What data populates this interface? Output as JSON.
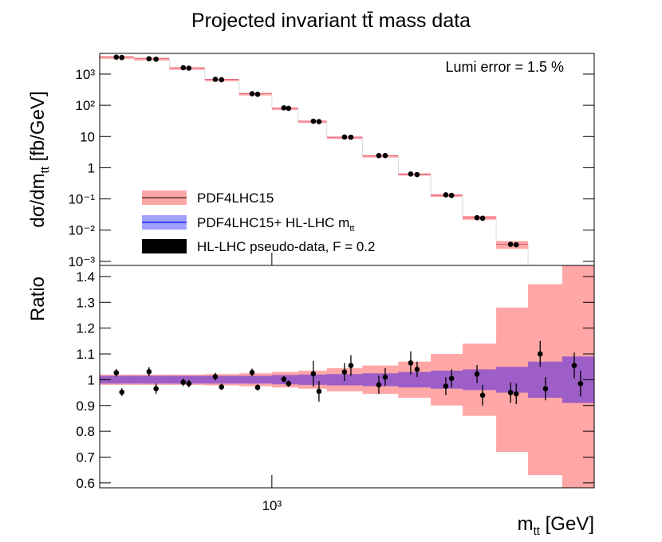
{
  "chart_data": [
    {
      "type": "histogram",
      "title": "Projected invariant tt̄ mass data",
      "ylabel": "dσ/dm",
      "ylabel_sub": "tt",
      "ylabel_unit": " [fb/GeV]",
      "annotation": "Lumi error = 1.5 %",
      "log_y": true,
      "ylim": [
        0.00074,
        4600
      ],
      "yticks": [
        {
          "value": 1000,
          "label": "10³"
        },
        {
          "value": 100,
          "label": "10²"
        },
        10,
        1,
        {
          "value": 0.1,
          "label": "10⁻¹"
        },
        {
          "value": 0.01,
          "label": "10⁻²"
        },
        {
          "value": 0.001,
          "label": "10⁻³"
        }
      ],
      "bins": [
        400,
        480,
        580,
        700,
        840,
        1000,
        1150,
        1340,
        1620,
        1960,
        2330,
        2760,
        3300,
        3910,
        4690,
        5560
      ],
      "series": [
        {
          "name": "PDF4LHC15",
          "color": "#ffa6a6",
          "line_color": "#e0607a",
          "values": [
            3600,
            3200,
            1600,
            680,
            240,
            82,
            31,
            9.5,
            2.4,
            0.62,
            0.13,
            0.025,
            0.0035,
            null,
            null
          ]
        },
        {
          "name": "PDF4LHC15+ HL-LHC m",
          "name_sub": "tt",
          "color": "#a0a0ff",
          "line_color": "#4040ff"
        }
      ],
      "points": {
        "name": "HL-LHC pseudo-data, F = 0.2",
        "color": "#000000",
        "x": [
          437,
          450,
          520,
          540,
          624,
          643,
          740,
          765,
          900,
          927,
          1066,
          1093,
          1247,
          1285,
          1472,
          1523,
          1767,
          1828,
          2094,
          2166,
          2524,
          2602,
          2980,
          3070,
          3563,
          3672,
          4170,
          4290,
          5000,
          5170
        ],
        "values": [
          3500,
          3400,
          3100,
          3000,
          1600,
          1550,
          680,
          660,
          235,
          225,
          83,
          80,
          31,
          30,
          9.6,
          9.5,
          2.45,
          2.45,
          0.63,
          0.6,
          0.135,
          0.13,
          0.025,
          0.024,
          0.0035,
          0.0034,
          null,
          null,
          null,
          null
        ]
      }
    },
    {
      "type": "ratio",
      "ylabel": "Ratio",
      "xlabel": "m",
      "xlabel_sub": "tt",
      "xlabel_unit": " [GeV]",
      "log_x": true,
      "xlim": [
        400,
        5560
      ],
      "xticks": [
        {
          "value": 1000,
          "label": "10³"
        }
      ],
      "ylim": [
        0.581,
        1.443
      ],
      "yticks": [
        0.6,
        0.7,
        0.8,
        0.9,
        1,
        1.1,
        1.2,
        1.3,
        1.4
      ],
      "bands": [
        {
          "color": "#ffa6a6",
          "values": [
            1,
            1,
            1,
            1,
            1,
            1,
            1,
            1,
            1,
            1,
            1,
            1,
            1,
            1,
            1
          ],
          "errors": [
            0.02,
            0.02,
            0.02,
            0.022,
            0.025,
            0.03,
            0.035,
            0.045,
            0.055,
            0.07,
            0.1,
            0.14,
            0.28,
            0.37,
            0.45
          ]
        },
        {
          "color": "#9d5fc7",
          "values": [
            1,
            1,
            1,
            1,
            1,
            1,
            1,
            1,
            1,
            1,
            1,
            1,
            1,
            1,
            1
          ],
          "errors": [
            0.015,
            0.015,
            0.015,
            0.015,
            0.015,
            0.018,
            0.02,
            0.022,
            0.025,
            0.03,
            0.035,
            0.04,
            0.05,
            0.07,
            0.09
          ]
        }
      ],
      "points": {
        "color": "#000000",
        "values": [
          1.027,
          0.952,
          1.031,
          0.965,
          0.99,
          0.985,
          1.012,
          0.972,
          1.028,
          0.97,
          1.002,
          0.985,
          1.023,
          0.955,
          1.03,
          1.055,
          0.98,
          1.01,
          1.065,
          1.04,
          0.975,
          1.005,
          1.022,
          0.94,
          0.95,
          0.945,
          1.1,
          0.965,
          1.055,
          0.985
        ],
        "errors": [
          0.015,
          0.015,
          0.018,
          0.02,
          0.015,
          0.015,
          0.015,
          0.012,
          0.015,
          0.012,
          0.012,
          0.012,
          0.05,
          0.04,
          0.035,
          0.04,
          0.035,
          0.035,
          0.045,
          0.03,
          0.035,
          0.035,
          0.035,
          0.04,
          0.04,
          0.04,
          0.05,
          0.045,
          0.05,
          0.05
        ]
      }
    }
  ]
}
